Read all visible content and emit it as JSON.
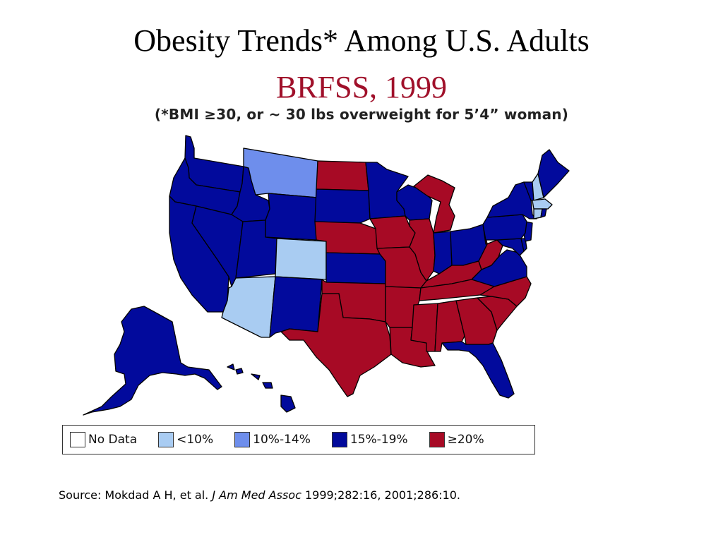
{
  "title": "Obesity Trends* Among U.S. Adults",
  "subtitle": "BRFSS, 1999",
  "note": "(*BMI ≥30, or ~ 30 lbs overweight for 5’4” woman)",
  "colors": {
    "title": "#000000",
    "subtitle": "#A0102A",
    "no_data": "#FFFFFF",
    "lt10": "#A9CCF2",
    "c10_14": "#6E8EEC",
    "c15_19": "#020A9C",
    "ge20": "#A70A25"
  },
  "legend": [
    {
      "key": "no_data",
      "label": "No Data"
    },
    {
      "key": "lt10",
      "label": "<10%"
    },
    {
      "key": "c10_14",
      "label": "10%-14%"
    },
    {
      "key": "c15_19",
      "label": "15%-19%"
    },
    {
      "key": "ge20",
      "label": "≥20%"
    }
  ],
  "source": {
    "prefix": "Source: Mokdad A H, et al. ",
    "journal": "J Am Med Assoc",
    "suffix": " 1999;282:16, 2001;286:10."
  },
  "map_data": {
    "AK": "c15_19",
    "HI": "c15_19",
    "WA": "c15_19",
    "OR": "c15_19",
    "CA": "c15_19",
    "NV": "c15_19",
    "ID": "c15_19",
    "MT": "c10_14",
    "WY": "c15_19",
    "UT": "c15_19",
    "CO": "lt10",
    "AZ": "lt10",
    "NM": "c15_19",
    "ND": "ge20",
    "SD": "c15_19",
    "NE": "ge20",
    "KS": "c15_19",
    "OK": "ge20",
    "TX": "ge20",
    "MN": "c15_19",
    "IA": "ge20",
    "MO": "ge20",
    "AR": "ge20",
    "LA": "ge20",
    "WI": "c15_19",
    "IL": "ge20",
    "MI": "ge20",
    "IN": "c15_19",
    "OH": "c15_19",
    "KY": "ge20",
    "TN": "ge20",
    "MS": "ge20",
    "AL": "ge20",
    "GA": "ge20",
    "FL": "c15_19",
    "SC": "ge20",
    "NC": "ge20",
    "VA": "c15_19",
    "WV": "ge20",
    "PA": "c15_19",
    "NY": "c15_19",
    "NJ": "c15_19",
    "DE": "c15_19",
    "MD": "c15_19",
    "VT": "c15_19",
    "NH": "lt10",
    "ME": "c15_19",
    "MA": "lt10",
    "RI": "c15_19",
    "CT": "lt10"
  }
}
